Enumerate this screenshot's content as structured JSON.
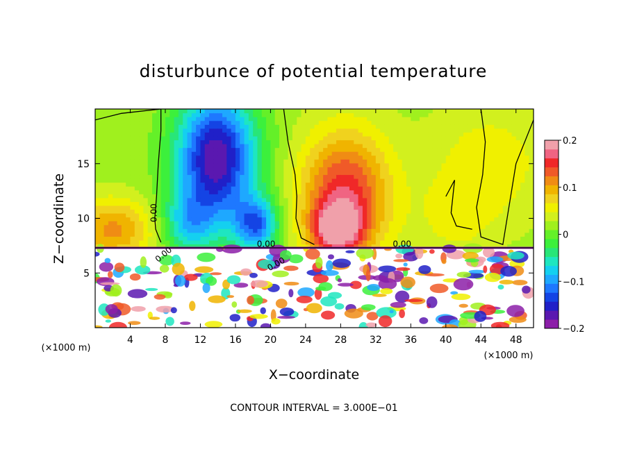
{
  "chart_data": {
    "type": "heatmap",
    "title": "disturbunce of potential temperature",
    "xlabel": "X−coordinate",
    "ylabel": "Z−coordinate",
    "x_unit_left": "(×1000 m)",
    "x_unit_right": "(×1000 m)",
    "xlim": [
      0,
      50
    ],
    "ylim": [
      0,
      20
    ],
    "x_ticks": [
      4,
      8,
      12,
      16,
      20,
      24,
      28,
      32,
      36,
      40,
      44,
      48
    ],
    "x_tick_labels": [
      "4",
      "8",
      "12",
      "16",
      "20",
      "24",
      "28",
      "32",
      "36",
      "40",
      "44",
      "48"
    ],
    "y_ticks": [
      5,
      10,
      15
    ],
    "y_tick_labels": [
      "5",
      "10",
      "15"
    ],
    "colorbar": {
      "min": -0.2,
      "max": 0.2,
      "ticks": [
        0.2,
        0.1,
        0,
        -0.1,
        -0.2
      ],
      "tick_labels": [
        "0.2",
        "0.1",
        "0",
        "−0.1",
        "−0.2"
      ],
      "colors": [
        "#8c1ea8",
        "#5a18b0",
        "#2020c8",
        "#1444e4",
        "#1e78ff",
        "#1ea8ff",
        "#14d0f0",
        "#1ee6c0",
        "#28e678",
        "#3cf03c",
        "#64f028",
        "#a0f01e",
        "#d2f01e",
        "#f0f000",
        "#f0d21e",
        "#f0b400",
        "#f08c14",
        "#f05a28",
        "#f02828",
        "#f06482",
        "#f0a0aa"
      ]
    },
    "contour_labels": [
      "0.00",
      "0.00",
      "0.00",
      "0.00",
      "0.00"
    ],
    "footer": "CONTOUR INTERVAL = 3.000E−01",
    "upper_field_blobs": [
      {
        "x": 13.8,
        "z": 15.5,
        "v": -0.2,
        "sx": 3.2,
        "sz": 4.2
      },
      {
        "x": 18.4,
        "z": 9.4,
        "v": -0.13,
        "sx": 1.8,
        "sz": 1.8
      },
      {
        "x": 10.5,
        "z": 9.5,
        "v": -0.08,
        "sx": 2.2,
        "sz": 2.0
      },
      {
        "x": 28.5,
        "z": 12.0,
        "v": 0.14,
        "sx": 3.6,
        "sz": 4.2
      },
      {
        "x": 27.5,
        "z": 9.0,
        "v": 0.12,
        "sx": 2.0,
        "sz": 1.6
      },
      {
        "x": 2.0,
        "z": 9.0,
        "v": 0.09,
        "sx": 3.5,
        "sz": 2.0
      },
      {
        "x": 45.0,
        "z": 15.0,
        "v": 0.04,
        "sx": 5.0,
        "sz": 4.0
      },
      {
        "x": 41.0,
        "z": 10.0,
        "v": 0.03,
        "sx": 3.0,
        "sz": 2.5
      }
    ]
  }
}
